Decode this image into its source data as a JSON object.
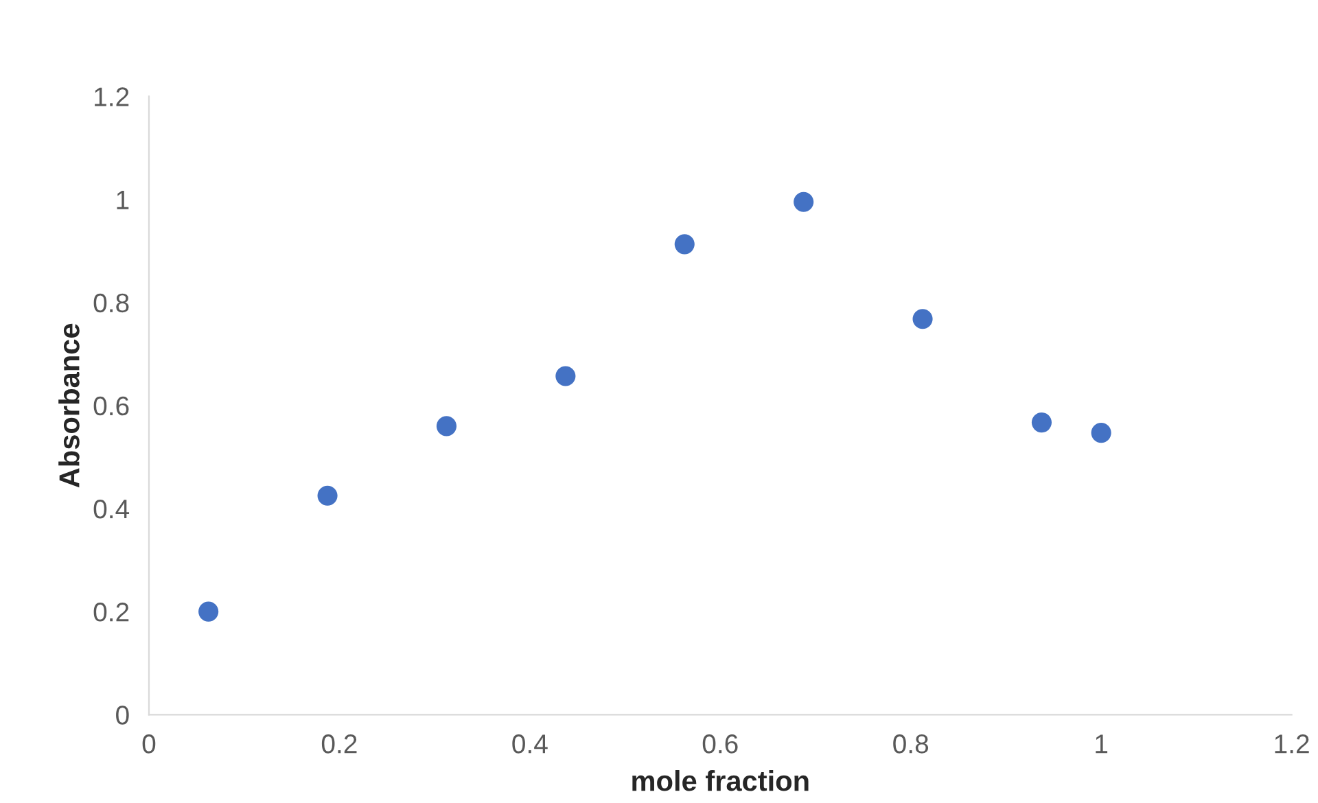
{
  "chart_data": {
    "type": "scatter",
    "xlabel": "mole fraction",
    "ylabel": "Absorbance",
    "x": [
      0.0625,
      0.1875,
      0.3125,
      0.4375,
      0.5625,
      0.6875,
      0.8125,
      0.9375,
      1.0
    ],
    "series": [
      {
        "color": "#4472c4",
        "values": [
          0.2,
          0.425,
          0.56,
          0.657,
          0.913,
          0.995,
          0.768,
          0.567,
          0.547
        ]
      }
    ],
    "xlim": [
      0,
      1.2
    ],
    "xticks": [
      0,
      0.2,
      0.4,
      0.6,
      0.8,
      1,
      1.2
    ],
    "ylim": [
      0,
      1.2
    ],
    "yticks": [
      0,
      0.2,
      0.4,
      0.6,
      0.8,
      1,
      1.2
    ],
    "grid": false,
    "marker": "circle"
  }
}
